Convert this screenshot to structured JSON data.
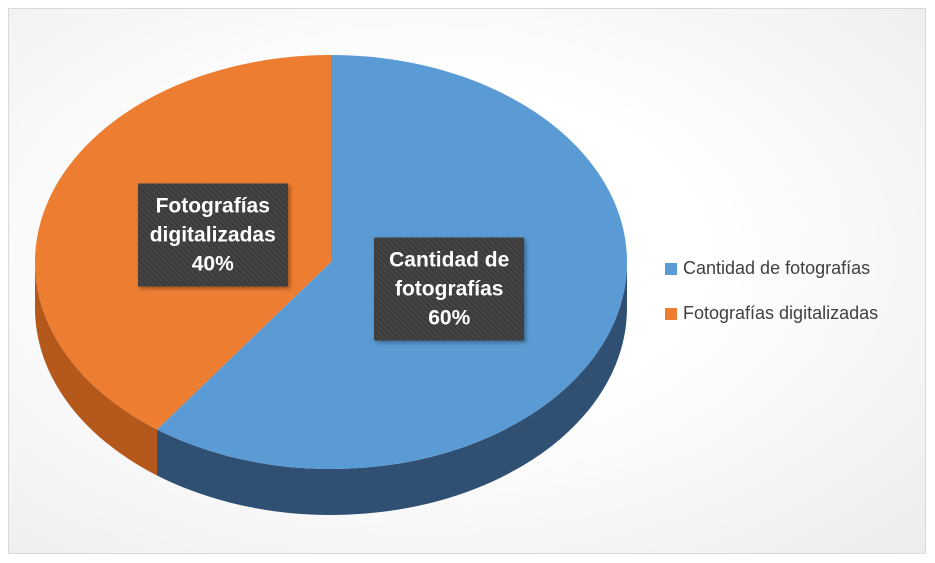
{
  "chart_data": {
    "type": "pie",
    "categories": [
      "Cantidad de fotografías",
      "Fotografías digitalizadas"
    ],
    "values": [
      60,
      40
    ],
    "value_labels": [
      "60%",
      "40%"
    ],
    "colors": [
      "#5b9bd5",
      "#ed7d31"
    ],
    "side_colors": [
      "#2f4f73",
      "#b5581c"
    ],
    "legend": "right"
  }
}
